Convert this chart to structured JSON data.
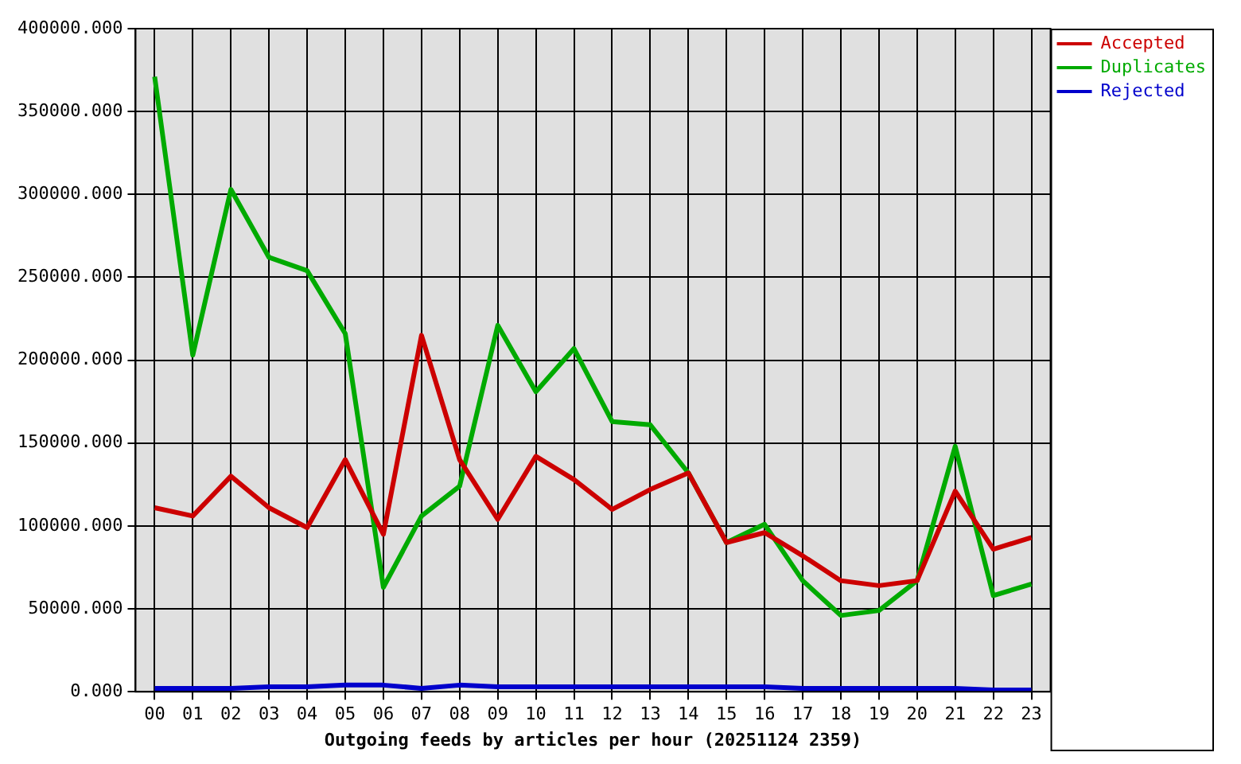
{
  "chart_data": {
    "type": "line",
    "xlabel": "Outgoing feeds by articles per hour (20251124 2359)",
    "categories": [
      "00",
      "01",
      "02",
      "03",
      "04",
      "05",
      "06",
      "07",
      "08",
      "09",
      "10",
      "11",
      "12",
      "13",
      "14",
      "15",
      "16",
      "17",
      "18",
      "19",
      "20",
      "21",
      "22",
      "23"
    ],
    "series": [
      {
        "name": "Accepted",
        "color": "#cc0000",
        "values": [
          111000,
          106000,
          130000,
          111000,
          99000,
          140000,
          95000,
          215000,
          140000,
          104000,
          142000,
          128000,
          110000,
          122000,
          132000,
          90000,
          96000,
          82000,
          67000,
          64000,
          67000,
          121000,
          86000,
          93000
        ]
      },
      {
        "name": "Duplicates",
        "color": "#00aa00",
        "values": [
          371000,
          203000,
          303000,
          262000,
          254000,
          216000,
          63000,
          106000,
          124000,
          221000,
          181000,
          207000,
          163000,
          161000,
          132000,
          90000,
          101000,
          67000,
          46000,
          49000,
          67000,
          148000,
          58000,
          65000
        ]
      },
      {
        "name": "Rejected",
        "color": "#0000cc",
        "values": [
          2000,
          2000,
          2000,
          3000,
          3000,
          4000,
          4000,
          2000,
          4000,
          3000,
          3000,
          3000,
          3000,
          3000,
          3000,
          3000,
          3000,
          2000,
          2000,
          2000,
          2000,
          2000,
          1000,
          1000
        ]
      }
    ],
    "ylim": [
      0,
      400000
    ],
    "yticks": [
      {
        "value": 0,
        "label": "0.000"
      },
      {
        "value": 50000,
        "label": "50000.000"
      },
      {
        "value": 100000,
        "label": "100000.000"
      },
      {
        "value": 150000,
        "label": "150000.000"
      },
      {
        "value": 200000,
        "label": "200000.000"
      },
      {
        "value": 250000,
        "label": "250000.000"
      },
      {
        "value": 300000,
        "label": "300000.000"
      },
      {
        "value": 350000,
        "label": "350000.000"
      },
      {
        "value": 400000,
        "label": "400000.000"
      }
    ],
    "grid": true,
    "legend": "top right",
    "marker": "none",
    "line_style": "solid"
  }
}
